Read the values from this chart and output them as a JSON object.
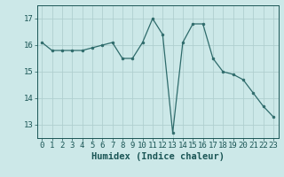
{
  "x": [
    0,
    1,
    2,
    3,
    4,
    5,
    6,
    7,
    8,
    9,
    10,
    11,
    12,
    13,
    14,
    15,
    16,
    17,
    18,
    19,
    20,
    21,
    22,
    23
  ],
  "y": [
    16.1,
    15.8,
    15.8,
    15.8,
    15.8,
    15.9,
    16.0,
    16.1,
    15.5,
    15.5,
    16.1,
    17.0,
    16.4,
    12.7,
    16.1,
    16.8,
    16.8,
    15.5,
    15.0,
    14.9,
    14.7,
    14.2,
    13.7,
    13.3
  ],
  "line_color": "#2e6b6b",
  "marker_color": "#2e6b6b",
  "bg_color": "#cce8e8",
  "grid_color": "#b0cfcf",
  "xlabel": "Humidex (Indice chaleur)",
  "ylim": [
    12.5,
    17.5
  ],
  "xlim": [
    -0.5,
    23.5
  ],
  "yticks": [
    13,
    14,
    15,
    16,
    17
  ],
  "xticks": [
    0,
    1,
    2,
    3,
    4,
    5,
    6,
    7,
    8,
    9,
    10,
    11,
    12,
    13,
    14,
    15,
    16,
    17,
    18,
    19,
    20,
    21,
    22,
    23
  ],
  "tick_color": "#1a5555",
  "label_fontsize": 7.5,
  "tick_fontsize": 6.5
}
